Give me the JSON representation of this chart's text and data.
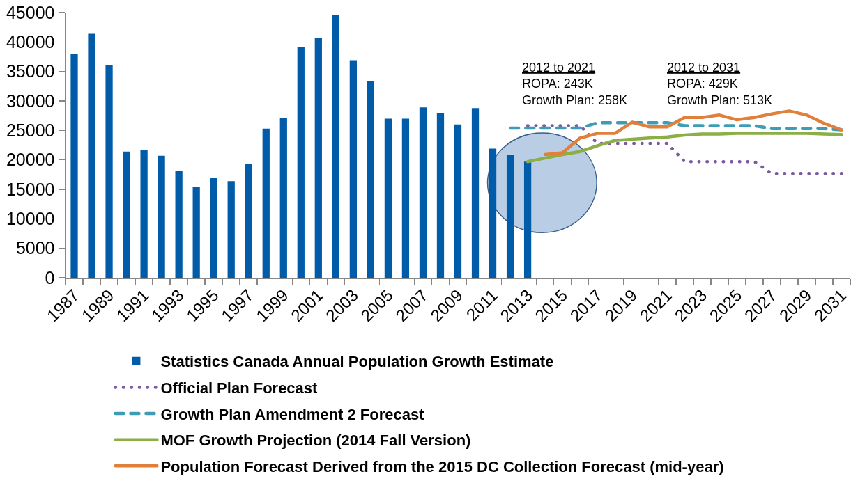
{
  "chart_data": {
    "type": "bar",
    "categories": [
      "1987",
      null,
      "1989",
      null,
      "1991",
      null,
      "1993",
      null,
      "1995",
      null,
      "1997",
      null,
      "1999",
      null,
      "2001",
      null,
      "2003",
      null,
      "2005",
      null,
      "2007",
      null,
      "2009",
      null,
      "2011",
      null,
      "2013",
      null,
      "2015",
      null,
      "2017",
      null,
      "2019",
      null,
      "2021",
      null,
      "2023",
      null,
      "2025",
      null,
      "2027",
      null,
      "2029",
      null,
      "2031"
    ],
    "series": [
      {
        "name": "Statistics Canada Annual Population Growth Estimate",
        "type": "bar",
        "color": "#005ba8",
        "values": [
          38000,
          41400,
          36100,
          21400,
          21700,
          20700,
          18200,
          15400,
          16900,
          16400,
          19300,
          25300,
          27100,
          39100,
          40700,
          44600,
          36900,
          33400,
          27000,
          27000,
          28900,
          28000,
          26000,
          28800,
          21900,
          20800,
          19700,
          null,
          null,
          null,
          null,
          null,
          null,
          null,
          null,
          null,
          null,
          null,
          null,
          null,
          null,
          null,
          null,
          null,
          null
        ]
      },
      {
        "name": "Official Plan Forecast",
        "type": "line",
        "color": "#7a5aa0",
        "line_style": "dotted",
        "values": [
          null,
          null,
          null,
          null,
          null,
          null,
          null,
          null,
          null,
          null,
          null,
          null,
          null,
          null,
          null,
          null,
          null,
          null,
          null,
          null,
          null,
          null,
          null,
          null,
          null,
          null,
          25800,
          25800,
          25800,
          25800,
          22800,
          22800,
          22800,
          22800,
          22800,
          19700,
          19700,
          19700,
          19700,
          19700,
          17700,
          17700,
          17700,
          17700,
          17700
        ]
      },
      {
        "name": "Growth Plan Amendment 2 Forecast",
        "type": "line",
        "color": "#3d9cb6",
        "line_style": "dashed",
        "values": [
          null,
          null,
          null,
          null,
          null,
          null,
          null,
          null,
          null,
          null,
          null,
          null,
          null,
          null,
          null,
          null,
          null,
          null,
          null,
          null,
          null,
          null,
          null,
          null,
          null,
          25400,
          25400,
          25400,
          25400,
          25400,
          26300,
          26300,
          26300,
          26300,
          26300,
          25800,
          25800,
          25800,
          25800,
          25800,
          25300,
          25300,
          25300,
          25300,
          25100
        ]
      },
      {
        "name": "MOF Growth Projection (2014 Fall Version)",
        "type": "line",
        "color": "#8bae46",
        "line_style": "solid",
        "values": [
          null,
          null,
          null,
          null,
          null,
          null,
          null,
          null,
          null,
          null,
          null,
          null,
          null,
          null,
          null,
          null,
          null,
          null,
          null,
          null,
          null,
          null,
          null,
          null,
          null,
          null,
          19700,
          20300,
          20900,
          21400,
          22400,
          23300,
          23500,
          23700,
          23900,
          24200,
          24400,
          24400,
          24500,
          24500,
          24500,
          24500,
          24500,
          24400,
          24300
        ]
      },
      {
        "name": "Population Forecast Derived from the 2015 DC Collection Forecast (mid-year)",
        "type": "line",
        "color": "#e0803a",
        "line_style": "solid",
        "values": [
          null,
          null,
          null,
          null,
          null,
          null,
          null,
          null,
          null,
          null,
          null,
          null,
          null,
          null,
          null,
          null,
          null,
          null,
          null,
          null,
          null,
          null,
          null,
          null,
          null,
          null,
          null,
          20900,
          21200,
          23700,
          24500,
          24500,
          26400,
          25600,
          25600,
          27200,
          27200,
          27600,
          26800,
          27200,
          27800,
          28300,
          27600,
          26200,
          25100
        ]
      }
    ],
    "annotations": [
      "2012 to 2021\nROPA: 243K\nGrowth Plan: 258K",
      "2012 to 2031\nROPA: 429K\nGrowth Plan: 513K"
    ],
    "ylim": [
      0,
      45000
    ],
    "yticks": [
      0,
      5000,
      10000,
      15000,
      20000,
      25000,
      30000,
      35000,
      40000,
      45000
    ],
    "grid": false,
    "legend": "bottom",
    "marker": "none"
  }
}
